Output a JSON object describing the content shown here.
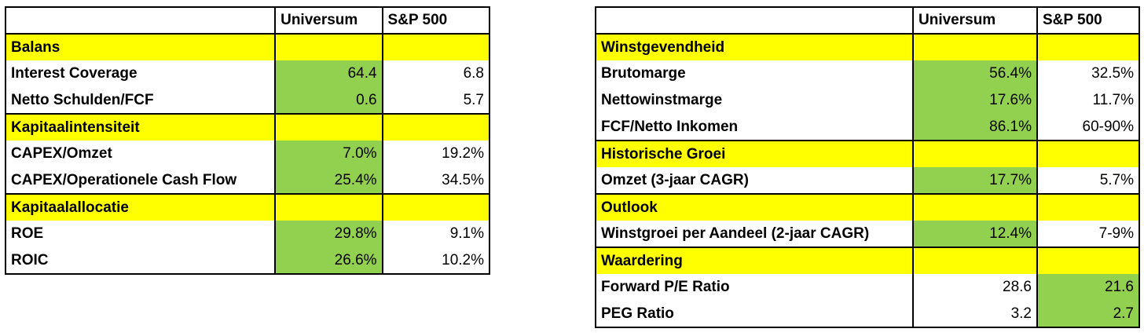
{
  "colors": {
    "section_bg": "#ffff00",
    "highlight_bg": "#92d050",
    "border": "#000000"
  },
  "left_table": {
    "columns": [
      "",
      "Universum",
      "S&P 500"
    ],
    "rows": [
      {
        "type": "section",
        "label": "Balans"
      },
      {
        "type": "data",
        "label": "Interest Coverage",
        "universum": "64.4",
        "sp500": "6.8",
        "highlight": "universum"
      },
      {
        "type": "data",
        "label": "Netto Schulden/FCF",
        "universum": "0.6",
        "sp500": "5.7",
        "highlight": "universum"
      },
      {
        "type": "section",
        "label": "Kapitaalintensiteit"
      },
      {
        "type": "data",
        "label": "CAPEX/Omzet",
        "universum": "7.0%",
        "sp500": "19.2%",
        "highlight": "universum"
      },
      {
        "type": "data",
        "label": "CAPEX/Operationele Cash Flow",
        "universum": "25.4%",
        "sp500": "34.5%",
        "highlight": "universum"
      },
      {
        "type": "section",
        "label": "Kapitaalallocatie"
      },
      {
        "type": "data",
        "label": "ROE",
        "universum": "29.8%",
        "sp500": "9.1%",
        "highlight": "universum"
      },
      {
        "type": "data",
        "label": "ROIC",
        "universum": "26.6%",
        "sp500": "10.2%",
        "highlight": "universum"
      }
    ]
  },
  "right_table": {
    "columns": [
      "",
      "Universum",
      "S&P 500"
    ],
    "rows": [
      {
        "type": "section",
        "label": "Winstgevendheid"
      },
      {
        "type": "data",
        "label": "Brutomarge",
        "universum": "56.4%",
        "sp500": "32.5%",
        "highlight": "universum"
      },
      {
        "type": "data",
        "label": "Nettowinstmarge",
        "universum": "17.6%",
        "sp500": "11.7%",
        "highlight": "universum"
      },
      {
        "type": "data",
        "label": "FCF/Netto Inkomen",
        "universum": "86.1%",
        "sp500": "60-90%",
        "highlight": "universum"
      },
      {
        "type": "section",
        "label": "Historische Groei"
      },
      {
        "type": "data",
        "label": "Omzet (3-jaar CAGR)",
        "universum": "17.7%",
        "sp500": "5.7%",
        "highlight": "universum"
      },
      {
        "type": "section",
        "label": "Outlook"
      },
      {
        "type": "data",
        "label": "Winstgroei per Aandeel (2-jaar CAGR)",
        "universum": "12.4%",
        "sp500": "7-9%",
        "highlight": "universum"
      },
      {
        "type": "section",
        "label": "Waardering"
      },
      {
        "type": "data",
        "label": "Forward P/E Ratio",
        "universum": "28.6",
        "sp500": "21.6",
        "highlight": "sp500"
      },
      {
        "type": "data",
        "label": "PEG Ratio",
        "universum": "3.2",
        "sp500": "2.7",
        "highlight": "sp500"
      }
    ]
  }
}
